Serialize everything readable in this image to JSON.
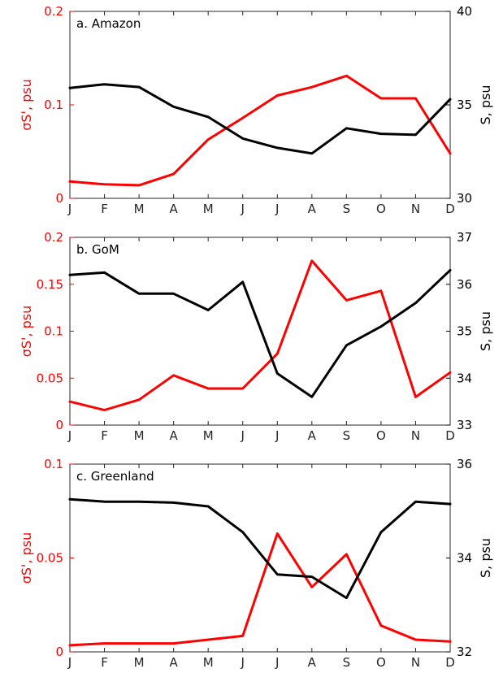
{
  "figure": {
    "months": [
      "J",
      "F",
      "M",
      "A",
      "M",
      "J",
      "J",
      "A",
      "S",
      "O",
      "N",
      "D"
    ],
    "left_color": "#ff0000",
    "right_color": "#000000"
  },
  "chart_data": [
    {
      "type": "line",
      "title": "a. Amazon",
      "categories": [
        "J",
        "F",
        "M",
        "A",
        "M",
        "J",
        "J",
        "A",
        "S",
        "O",
        "N",
        "D"
      ],
      "ylabel_left": "σS', psu",
      "ylabel_right": "S, psu",
      "ylim_left": [
        0,
        0.2
      ],
      "ylim_right": [
        30,
        40
      ],
      "yticks_left": [
        "0",
        "0.1",
        "0.2"
      ],
      "yticks_left_values": [
        0,
        0.1,
        0.2
      ],
      "yticks_right": [
        "30",
        "35",
        "40"
      ],
      "yticks_right_values": [
        30,
        35,
        40
      ],
      "series": [
        {
          "axis": "left",
          "color": "#ff0000",
          "values": [
            0.018,
            0.015,
            0.014,
            0.026,
            0.063,
            0.086,
            0.11,
            0.119,
            0.131,
            0.107,
            0.107,
            0.048
          ]
        },
        {
          "axis": "right",
          "color": "#000000",
          "values": [
            35.9,
            36.1,
            35.95,
            34.9,
            34.35,
            33.2,
            32.7,
            32.4,
            33.75,
            33.45,
            33.4,
            35.3
          ]
        }
      ]
    },
    {
      "type": "line",
      "title": "b. GoM",
      "categories": [
        "J",
        "F",
        "M",
        "A",
        "M",
        "J",
        "J",
        "A",
        "S",
        "O",
        "N",
        "D"
      ],
      "ylabel_left": "σS', psu",
      "ylabel_right": "S, psu",
      "ylim_left": [
        0,
        0.2
      ],
      "ylim_right": [
        33,
        37
      ],
      "yticks_left": [
        "0",
        "0.05",
        "0.1",
        "0.15",
        "0.2"
      ],
      "yticks_left_values": [
        0,
        0.05,
        0.1,
        0.15,
        0.2
      ],
      "yticks_right": [
        "33",
        "34",
        "35",
        "36",
        "37"
      ],
      "yticks_right_values": [
        33,
        34,
        35,
        36,
        37
      ],
      "series": [
        {
          "axis": "left",
          "color": "#ff0000",
          "values": [
            0.025,
            0.016,
            0.027,
            0.053,
            0.039,
            0.039,
            0.076,
            0.175,
            0.133,
            0.143,
            0.03,
            0.056
          ]
        },
        {
          "axis": "right",
          "color": "#000000",
          "values": [
            36.2,
            36.25,
            35.8,
            35.8,
            35.45,
            36.05,
            34.1,
            33.6,
            34.7,
            35.1,
            35.6,
            36.3
          ]
        }
      ]
    },
    {
      "type": "line",
      "title": "c. Greenland",
      "categories": [
        "J",
        "F",
        "M",
        "A",
        "M",
        "J",
        "J",
        "A",
        "S",
        "O",
        "N",
        "D"
      ],
      "ylabel_left": "σS', psu",
      "ylabel_right": "S, psu",
      "ylim_left": [
        0,
        0.1
      ],
      "ylim_right": [
        32,
        36
      ],
      "yticks_left": [
        "0",
        "0.05",
        "0.1"
      ],
      "yticks_left_values": [
        0,
        0.05,
        0.1
      ],
      "yticks_right": [
        "32",
        "34",
        "36"
      ],
      "yticks_right_values": [
        32,
        34,
        36
      ],
      "series": [
        {
          "axis": "left",
          "color": "#ff0000",
          "values": [
            0.0035,
            0.0045,
            0.0045,
            0.0045,
            0.0065,
            0.0085,
            0.063,
            0.0345,
            0.052,
            0.014,
            0.0065,
            0.0055
          ]
        },
        {
          "axis": "right",
          "color": "#000000",
          "values": [
            35.25,
            35.2,
            35.2,
            35.18,
            35.1,
            34.55,
            33.65,
            33.6,
            33.15,
            34.55,
            35.2,
            35.15
          ]
        }
      ]
    }
  ]
}
